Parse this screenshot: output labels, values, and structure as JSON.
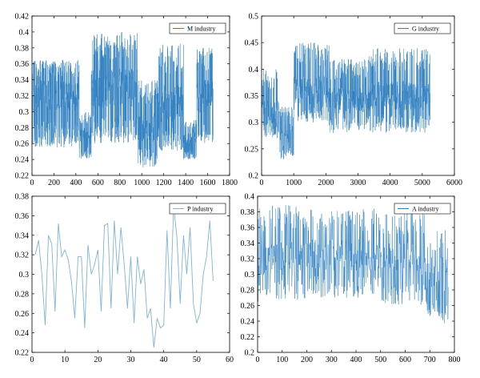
{
  "chart_data": [
    {
      "type": "line",
      "legend": "M industry",
      "legend_position": "top-right",
      "series_color": "#2f7fbf",
      "xlim": [
        0,
        1800
      ],
      "ylim": [
        0.22,
        0.42
      ],
      "xticks": [
        0,
        200,
        400,
        600,
        800,
        1000,
        1200,
        1400,
        1600,
        1800
      ],
      "yticks": [
        0.22,
        0.24,
        0.26,
        0.28,
        0.3,
        0.32,
        0.34,
        0.36,
        0.38,
        0.4,
        0.42
      ],
      "xtick_labels": [
        "0",
        "200",
        "400",
        "600",
        "800",
        "1000",
        "1200",
        "1400",
        "1600",
        "1800"
      ],
      "ytick_labels": [
        "0.22",
        "0.24",
        "0.26",
        "0.28",
        "0.3",
        "0.32",
        "0.34",
        "0.36",
        "0.38",
        "0.4",
        "0.42"
      ],
      "n_points": 1650,
      "segments": [
        {
          "x": [
            0,
            430
          ],
          "min": 0.255,
          "max": 0.365,
          "base": 0.32
        },
        {
          "x": [
            430,
            540
          ],
          "min": 0.24,
          "max": 0.3,
          "base": 0.27
        },
        {
          "x": [
            540,
            960
          ],
          "min": 0.26,
          "max": 0.4,
          "base": 0.33
        },
        {
          "x": [
            960,
            1150
          ],
          "min": 0.23,
          "max": 0.34,
          "base": 0.28
        },
        {
          "x": [
            1150,
            1380
          ],
          "min": 0.25,
          "max": 0.385,
          "base": 0.31
        },
        {
          "x": [
            1380,
            1500
          ],
          "min": 0.24,
          "max": 0.29,
          "base": 0.265
        },
        {
          "x": [
            1500,
            1650
          ],
          "min": 0.26,
          "max": 0.38,
          "base": 0.32
        }
      ]
    },
    {
      "type": "line",
      "legend": "G industry",
      "legend_position": "top-right",
      "series_color": "#2f7fbf",
      "xlim": [
        0,
        6000
      ],
      "ylim": [
        0.2,
        0.5
      ],
      "xticks": [
        0,
        1000,
        2000,
        3000,
        4000,
        5000,
        6000
      ],
      "yticks": [
        0.2,
        0.25,
        0.3,
        0.35,
        0.4,
        0.45,
        0.5
      ],
      "xtick_labels": [
        "0",
        "1000",
        "2000",
        "3000",
        "4000",
        "5000",
        "6000"
      ],
      "ytick_labels": [
        "0.2",
        "0.25",
        "0.3",
        "0.35",
        "0.4",
        "0.45",
        "0.5"
      ],
      "n_points": 1300,
      "segments": [
        {
          "x": [
            0,
            550
          ],
          "min": 0.27,
          "max": 0.4,
          "base": 0.32
        },
        {
          "x": [
            550,
            1000
          ],
          "min": 0.23,
          "max": 0.33,
          "base": 0.28
        },
        {
          "x": [
            1000,
            2100
          ],
          "min": 0.3,
          "max": 0.45,
          "base": 0.36
        },
        {
          "x": [
            2100,
            3300
          ],
          "min": 0.28,
          "max": 0.42,
          "base": 0.34
        },
        {
          "x": [
            3300,
            5250
          ],
          "min": 0.28,
          "max": 0.44,
          "base": 0.35
        }
      ]
    },
    {
      "type": "line",
      "legend": "P industry",
      "legend_position": "top-right",
      "series_color": "#7fb3d9",
      "xlim": [
        0,
        60
      ],
      "ylim": [
        0.22,
        0.38
      ],
      "xticks": [
        0,
        10,
        20,
        30,
        40,
        50,
        60
      ],
      "yticks": [
        0.22,
        0.24,
        0.26,
        0.28,
        0.3,
        0.32,
        0.34,
        0.36,
        0.38
      ],
      "xtick_labels": [
        "0",
        "10",
        "20",
        "30",
        "40",
        "50",
        "60"
      ],
      "ytick_labels": [
        "0.22",
        "0.24",
        "0.26",
        "0.28",
        "0.3",
        "0.32",
        "0.34",
        "0.36",
        "0.38"
      ],
      "x": [
        1,
        2,
        3,
        4,
        5,
        6,
        7,
        8,
        9,
        10,
        11,
        12,
        13,
        14,
        15,
        16,
        17,
        18,
        19,
        20,
        21,
        22,
        23,
        24,
        25,
        26,
        27,
        28,
        29,
        30,
        31,
        32,
        33,
        34,
        35,
        36,
        37,
        38,
        39,
        40,
        41,
        42,
        43,
        44,
        45,
        46,
        47,
        48,
        49,
        50,
        51,
        52,
        53,
        54,
        55
      ],
      "y": [
        0.32,
        0.335,
        0.3,
        0.248,
        0.34,
        0.331,
        0.262,
        0.352,
        0.318,
        0.325,
        0.315,
        0.292,
        0.255,
        0.318,
        0.318,
        0.245,
        0.33,
        0.3,
        0.31,
        0.325,
        0.262,
        0.35,
        0.352,
        0.265,
        0.355,
        0.3,
        0.348,
        0.31,
        0.265,
        0.318,
        0.25,
        0.318,
        0.29,
        0.305,
        0.255,
        0.265,
        0.225,
        0.255,
        0.245,
        0.248,
        0.345,
        0.265,
        0.37,
        0.338,
        0.27,
        0.34,
        0.3,
        0.348,
        0.27,
        0.25,
        0.26,
        0.3,
        0.318,
        0.355,
        0.293
      ]
    },
    {
      "type": "line",
      "legend": "A industry",
      "legend_position": "top-right",
      "series_color": "#2f7fbf",
      "xlim": [
        0,
        800
      ],
      "ylim": [
        0.2,
        0.4
      ],
      "xticks": [
        0,
        100,
        200,
        300,
        400,
        500,
        600,
        700,
        800
      ],
      "yticks": [
        0.2,
        0.22,
        0.24,
        0.26,
        0.28,
        0.3,
        0.32,
        0.34,
        0.36,
        0.38,
        0.4
      ],
      "xtick_labels": [
        "0",
        "100",
        "200",
        "300",
        "400",
        "500",
        "600",
        "700",
        "800"
      ],
      "ytick_labels": [
        "0.2",
        "0.22",
        "0.24",
        "0.26",
        "0.28",
        "0.3",
        "0.32",
        "0.34",
        "0.36",
        "0.38",
        "0.4"
      ],
      "n_points": 775,
      "segments": [
        {
          "x": [
            0,
            200
          ],
          "min": 0.265,
          "max": 0.39,
          "base": 0.32
        },
        {
          "x": [
            200,
            500
          ],
          "min": 0.27,
          "max": 0.385,
          "base": 0.325
        },
        {
          "x": [
            500,
            680
          ],
          "min": 0.26,
          "max": 0.38,
          "base": 0.32
        },
        {
          "x": [
            680,
            775
          ],
          "min": 0.235,
          "max": 0.36,
          "base": 0.3
        }
      ]
    }
  ]
}
